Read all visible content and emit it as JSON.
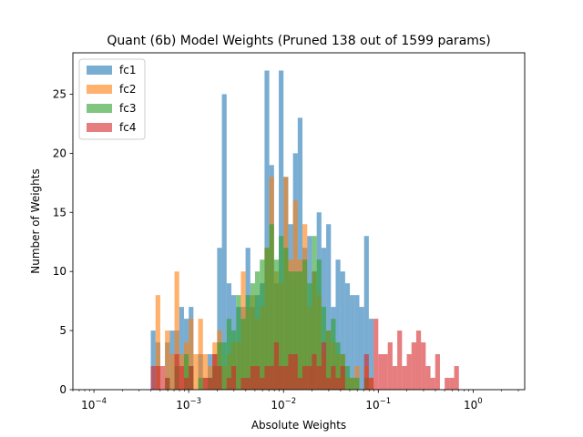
{
  "chart_data": {
    "type": "bar",
    "title": "Quant (6b) Model Weights  (Pruned 138 out of 1599 params)",
    "xlabel": "Absolute Weights",
    "ylabel": "Number of Weights",
    "xscale": "log",
    "xlim": [
      6e-05,
      3.5
    ],
    "ylim": [
      0,
      28.5
    ],
    "x_ticks": [
      {
        "value": 0.0001,
        "base": "10",
        "exp": "−4"
      },
      {
        "value": 0.001,
        "base": "10",
        "exp": "−3"
      },
      {
        "value": 0.01,
        "base": "10",
        "exp": "−2"
      },
      {
        "value": 0.1,
        "base": "10",
        "exp": "−1"
      },
      {
        "value": 1,
        "base": "10",
        "exp": "0"
      }
    ],
    "y_ticks": [
      "0",
      "5",
      "10",
      "15",
      "20",
      "25"
    ],
    "legend_position": "top-left",
    "bin_edges_log10": [
      -3.4,
      -3.35,
      -3.3,
      -3.25,
      -3.2,
      -3.15,
      -3.1,
      -3.05,
      -3.0,
      -2.95,
      -2.9,
      -2.85,
      -2.8,
      -2.75,
      -2.7,
      -2.65,
      -2.6,
      -2.55,
      -2.5,
      -2.45,
      -2.4,
      -2.35,
      -2.3,
      -2.25,
      -2.2,
      -2.15,
      -2.1,
      -2.05,
      -2.0,
      -1.95,
      -1.9,
      -1.85,
      -1.8,
      -1.75,
      -1.7,
      -1.65,
      -1.6,
      -1.55,
      -1.5,
      -1.45,
      -1.4,
      -1.35,
      -1.3,
      -1.25,
      -1.2,
      -1.15,
      -1.1,
      -1.05,
      -1.0,
      -0.95,
      -0.9,
      -0.85,
      -0.8,
      -0.75,
      -0.7,
      -0.65,
      -0.6,
      -0.55,
      -0.5,
      -0.45,
      -0.4,
      -0.35,
      -0.3,
      -0.25,
      -0.2,
      -0.15,
      -0.1,
      -0.05,
      0.0
    ],
    "series": [
      {
        "name": "fc1",
        "color": "#1f77b4",
        "opacity": 0.6,
        "values": [
          5,
          4,
          0,
          4,
          5,
          5,
          7,
          6,
          7,
          0,
          3,
          1,
          3,
          3,
          12,
          25,
          9,
          8,
          7,
          7,
          12,
          7,
          8,
          9,
          27,
          19,
          9,
          27,
          18,
          14,
          20,
          23,
          12,
          13,
          10,
          15,
          12,
          14,
          7,
          11,
          10,
          9,
          8,
          8,
          7,
          13,
          6,
          0,
          0,
          0,
          0,
          0,
          0,
          0,
          0,
          0,
          0,
          0,
          0,
          0,
          0,
          0,
          0,
          0,
          0,
          0,
          0,
          0
        ]
      },
      {
        "name": "fc2",
        "color": "#ff7f0e",
        "opacity": 0.6,
        "values": [
          0,
          8,
          0,
          5,
          3,
          10,
          3,
          4,
          6,
          3,
          6,
          3,
          2,
          4,
          5,
          2,
          3,
          4,
          4,
          10,
          7,
          8,
          6,
          7,
          12,
          18,
          10,
          9,
          18,
          11,
          16,
          11,
          14,
          7,
          10,
          8,
          3,
          5,
          4,
          3,
          3,
          1,
          1,
          2,
          0,
          2,
          1,
          0,
          0,
          0,
          0,
          0,
          0,
          0,
          0,
          0,
          0,
          0,
          0,
          0,
          0,
          0,
          0,
          0,
          0,
          0,
          0,
          0
        ]
      },
      {
        "name": "fc3",
        "color": "#2ca02c",
        "opacity": 0.6,
        "values": [
          0,
          0,
          0,
          1,
          0,
          2,
          0,
          3,
          2,
          0,
          1,
          0,
          1,
          2,
          4,
          4,
          6,
          5,
          8,
          6,
          8,
          9,
          10,
          11,
          12,
          14,
          11,
          13,
          12,
          10,
          10,
          10,
          11,
          9,
          13,
          11,
          7,
          5,
          6,
          4,
          3,
          2,
          1,
          1,
          0,
          1,
          0,
          0,
          0,
          0,
          0,
          0,
          0,
          0,
          0,
          0,
          0,
          0,
          0,
          0,
          0,
          0,
          0,
          0,
          0,
          0,
          0,
          0
        ]
      },
      {
        "name": "fc4",
        "color": "#d62728",
        "opacity": 0.6,
        "values": [
          2,
          2,
          2,
          1,
          0,
          3,
          2,
          1,
          2,
          0,
          0,
          1,
          1,
          3,
          2,
          0,
          1,
          2,
          0,
          1,
          1,
          2,
          2,
          1,
          2,
          2,
          4,
          2,
          2,
          3,
          3,
          1,
          2,
          2,
          3,
          2,
          4,
          1,
          2,
          1,
          2,
          0,
          0,
          0,
          0,
          3,
          1,
          6,
          3,
          3,
          4,
          2,
          5,
          2,
          3,
          4,
          5,
          4,
          2,
          1,
          3,
          0,
          1,
          1,
          2,
          0,
          0,
          0
        ]
      }
    ]
  }
}
